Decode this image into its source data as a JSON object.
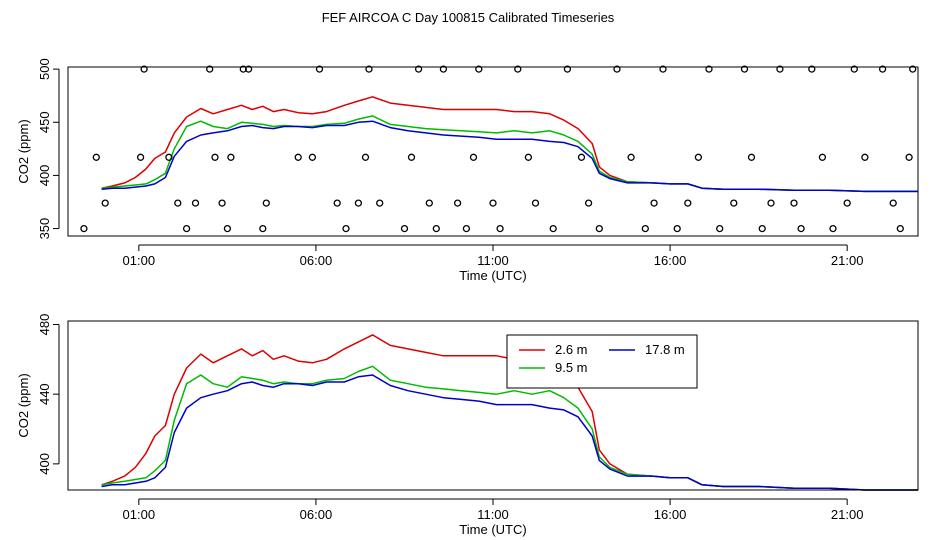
{
  "title": "FEF AIRCOA C  Day 100815  Calibrated Timeseries",
  "colors": {
    "s1": "#dd0000",
    "s2": "#00bb00",
    "s3": "#0000cc",
    "axis": "#000000"
  },
  "chart_data": [
    {
      "type": "line",
      "ylabel": "CO2 (ppm)",
      "xlabel": "Time (UTC)",
      "xlim": [
        -1.0,
        23.0
      ],
      "ylim": [
        343,
        502
      ],
      "xticks": [
        1,
        6,
        11,
        16,
        21
      ],
      "xtick_labels": [
        "01:00",
        "06:00",
        "11:00",
        "16:00",
        "21:00"
      ],
      "yticks": [
        350,
        400,
        450,
        500
      ],
      "ytick_labels": [
        "350",
        "400",
        "450",
        "500"
      ],
      "series": [
        {
          "name": "2.6 m",
          "color": "#dd0000",
          "x": [
            -0.05,
            0.25,
            0.6,
            0.9,
            1.2,
            1.45,
            1.75,
            2.0,
            2.35,
            2.75,
            3.1,
            3.5,
            3.9,
            4.2,
            4.5,
            4.8,
            5.1,
            5.5,
            5.9,
            6.3,
            6.8,
            7.2,
            7.6,
            8.1,
            8.6,
            9.1,
            9.6,
            10.1,
            10.6,
            11.1,
            11.6,
            12.1,
            12.6,
            13.0,
            13.4,
            13.8,
            14.0,
            14.3,
            14.8,
            15.5,
            16.0,
            16.5,
            16.9,
            17.5,
            18.5,
            19.5,
            20.5,
            21.5,
            22.5,
            23.0
          ],
          "values": [
            388,
            390,
            393,
            398,
            406,
            416,
            422,
            440,
            455,
            463,
            458,
            462,
            466,
            462,
            465,
            460,
            462,
            459,
            458,
            460,
            466,
            470,
            474,
            468,
            466,
            464,
            462,
            462,
            462,
            462,
            460,
            460,
            458,
            452,
            444,
            430,
            408,
            400,
            394,
            393,
            392,
            392,
            388,
            387,
            387,
            386,
            386,
            385,
            385,
            385
          ]
        },
        {
          "name": "9.5 m",
          "color": "#00bb00",
          "x": [
            -0.05,
            0.25,
            0.6,
            0.9,
            1.2,
            1.45,
            1.75,
            2.0,
            2.35,
            2.75,
            3.1,
            3.5,
            3.9,
            4.2,
            4.5,
            4.8,
            5.1,
            5.5,
            5.9,
            6.3,
            6.8,
            7.2,
            7.6,
            8.1,
            8.6,
            9.1,
            9.6,
            10.1,
            10.6,
            11.1,
            11.6,
            12.1,
            12.6,
            13.0,
            13.4,
            13.8,
            14.0,
            14.3,
            14.8,
            15.5,
            16.0,
            16.5,
            16.9,
            17.5,
            18.5,
            19.5,
            20.5,
            21.5,
            22.5,
            23.0
          ],
          "values": [
            388,
            389,
            390,
            391,
            392,
            396,
            402,
            425,
            446,
            451,
            446,
            444,
            450,
            449,
            448,
            446,
            447,
            446,
            446,
            448,
            449,
            453,
            456,
            448,
            446,
            444,
            443,
            442,
            441,
            440,
            442,
            440,
            442,
            438,
            432,
            420,
            404,
            398,
            394,
            393,
            392,
            392,
            388,
            387,
            387,
            386,
            386,
            385,
            385,
            385
          ]
        },
        {
          "name": "17.8 m",
          "color": "#0000cc",
          "x": [
            -0.05,
            0.25,
            0.6,
            0.9,
            1.2,
            1.45,
            1.75,
            2.0,
            2.35,
            2.75,
            3.1,
            3.5,
            3.9,
            4.2,
            4.5,
            4.8,
            5.1,
            5.5,
            5.9,
            6.3,
            6.8,
            7.2,
            7.6,
            8.1,
            8.6,
            9.1,
            9.6,
            10.1,
            10.6,
            11.1,
            11.6,
            12.1,
            12.6,
            13.0,
            13.4,
            13.8,
            14.0,
            14.3,
            14.8,
            15.5,
            16.0,
            16.5,
            16.9,
            17.5,
            18.5,
            19.5,
            20.5,
            21.5,
            22.5,
            23.0
          ],
          "values": [
            387,
            388,
            388,
            389,
            390,
            392,
            398,
            418,
            432,
            438,
            440,
            442,
            446,
            447,
            445,
            444,
            446,
            446,
            445,
            447,
            447,
            450,
            451,
            445,
            442,
            440,
            438,
            437,
            436,
            434,
            434,
            434,
            432,
            431,
            427,
            416,
            402,
            397,
            393,
            393,
            392,
            392,
            388,
            387,
            387,
            386,
            386,
            385,
            385,
            385
          ]
        },
        {
          "name": "markers",
          "color": "#000000",
          "type": "scatter",
          "x": [
            -0.55,
            -0.2,
            0.05,
            1.05,
            1.15,
            1.85,
            2.1,
            2.35,
            2.6,
            3.0,
            3.15,
            3.35,
            3.5,
            3.6,
            3.95,
            4.1,
            4.5,
            4.6,
            5.5,
            5.9,
            6.1,
            6.6,
            6.85,
            7.2,
            7.4,
            7.5,
            7.8,
            8.5,
            8.7,
            8.9,
            9.2,
            9.4,
            9.6,
            10.0,
            10.25,
            10.45,
            10.6,
            11.0,
            11.2,
            11.7,
            12.0,
            12.2,
            12.7,
            13.1,
            13.5,
            13.7,
            14.0,
            14.5,
            14.9,
            15.3,
            15.55,
            15.8,
            16.2,
            16.5,
            16.8,
            17.1,
            17.4,
            17.8,
            18.1,
            18.3,
            18.6,
            18.85,
            19.1,
            19.5,
            19.7,
            20.0,
            20.3,
            20.6,
            21.0,
            21.2,
            21.5,
            22.0,
            22.3,
            22.5,
            22.75,
            22.85
          ],
          "values": [
            350,
            417,
            374,
            417,
            500,
            417,
            374,
            350,
            374,
            500,
            417,
            374,
            350,
            417,
            500,
            500,
            350,
            374,
            417,
            417,
            500,
            374,
            350,
            374,
            417,
            500,
            374,
            350,
            417,
            500,
            374,
            350,
            500,
            374,
            350,
            417,
            500,
            374,
            350,
            500,
            417,
            374,
            350,
            500,
            417,
            374,
            350,
            500,
            417,
            350,
            374,
            500,
            350,
            374,
            417,
            500,
            350,
            374,
            500,
            417,
            350,
            374,
            500,
            374,
            350,
            500,
            417,
            350,
            374,
            500,
            417,
            500,
            374,
            350,
            417,
            500
          ]
        }
      ]
    },
    {
      "type": "line",
      "ylabel": "CO2 (ppm)",
      "xlabel": "Time (UTC)",
      "xlim": [
        -1.0,
        23.0
      ],
      "ylim": [
        385,
        482
      ],
      "xticks": [
        1,
        6,
        11,
        16,
        21
      ],
      "xtick_labels": [
        "01:00",
        "06:00",
        "11:00",
        "16:00",
        "21:00"
      ],
      "yticks": [
        400,
        440,
        480
      ],
      "ytick_labels": [
        "400",
        "440",
        "480"
      ],
      "legend": {
        "position": "upper-center-right",
        "entries": [
          "2.6 m",
          "9.5 m",
          "17.8 m"
        ]
      },
      "series": [
        {
          "name": "2.6 m",
          "color": "#dd0000",
          "x": [
            -0.05,
            0.25,
            0.6,
            0.9,
            1.2,
            1.45,
            1.75,
            2.0,
            2.35,
            2.75,
            3.1,
            3.5,
            3.9,
            4.2,
            4.5,
            4.8,
            5.1,
            5.5,
            5.9,
            6.3,
            6.8,
            7.2,
            7.6,
            8.1,
            8.6,
            9.1,
            9.6,
            10.1,
            10.6,
            11.1,
            11.6,
            12.1,
            12.6,
            13.0,
            13.4,
            13.8,
            14.0,
            14.3,
            14.8,
            15.5,
            16.0,
            16.5,
            16.9,
            17.5,
            18.5,
            19.5,
            20.5,
            21.5,
            22.5,
            23.0
          ],
          "values": [
            388,
            390,
            393,
            398,
            406,
            416,
            422,
            440,
            455,
            463,
            458,
            462,
            466,
            462,
            465,
            460,
            462,
            459,
            458,
            460,
            466,
            470,
            474,
            468,
            466,
            464,
            462,
            462,
            462,
            462,
            460,
            460,
            458,
            452,
            444,
            430,
            408,
            400,
            394,
            393,
            392,
            392,
            388,
            387,
            387,
            386,
            386,
            385,
            385,
            385
          ]
        },
        {
          "name": "9.5 m",
          "color": "#00bb00",
          "x": [
            -0.05,
            0.25,
            0.6,
            0.9,
            1.2,
            1.45,
            1.75,
            2.0,
            2.35,
            2.75,
            3.1,
            3.5,
            3.9,
            4.2,
            4.5,
            4.8,
            5.1,
            5.5,
            5.9,
            6.3,
            6.8,
            7.2,
            7.6,
            8.1,
            8.6,
            9.1,
            9.6,
            10.1,
            10.6,
            11.1,
            11.6,
            12.1,
            12.6,
            13.0,
            13.4,
            13.8,
            14.0,
            14.3,
            14.8,
            15.5,
            16.0,
            16.5,
            16.9,
            17.5,
            18.5,
            19.5,
            20.5,
            21.5,
            22.5,
            23.0
          ],
          "values": [
            388,
            389,
            390,
            391,
            392,
            396,
            402,
            425,
            446,
            451,
            446,
            444,
            450,
            449,
            448,
            446,
            447,
            446,
            446,
            448,
            449,
            453,
            456,
            448,
            446,
            444,
            443,
            442,
            441,
            440,
            442,
            440,
            442,
            438,
            432,
            420,
            404,
            398,
            394,
            393,
            392,
            392,
            388,
            387,
            387,
            386,
            386,
            385,
            385,
            385
          ]
        },
        {
          "name": "17.8 m",
          "color": "#0000cc",
          "x": [
            -0.05,
            0.25,
            0.6,
            0.9,
            1.2,
            1.45,
            1.75,
            2.0,
            2.35,
            2.75,
            3.1,
            3.5,
            3.9,
            4.2,
            4.5,
            4.8,
            5.1,
            5.5,
            5.9,
            6.3,
            6.8,
            7.2,
            7.6,
            8.1,
            8.6,
            9.1,
            9.6,
            10.1,
            10.6,
            11.1,
            11.6,
            12.1,
            12.6,
            13.0,
            13.4,
            13.8,
            14.0,
            14.3,
            14.8,
            15.5,
            16.0,
            16.5,
            16.9,
            17.5,
            18.5,
            19.5,
            20.5,
            21.5,
            22.5,
            23.0
          ],
          "values": [
            387,
            388,
            388,
            389,
            390,
            392,
            398,
            418,
            432,
            438,
            440,
            442,
            446,
            447,
            445,
            444,
            446,
            446,
            445,
            447,
            447,
            450,
            451,
            445,
            442,
            440,
            438,
            437,
            436,
            434,
            434,
            434,
            432,
            431,
            427,
            416,
            402,
            397,
            393,
            393,
            392,
            392,
            388,
            387,
            387,
            386,
            386,
            385,
            385,
            385
          ]
        }
      ]
    }
  ]
}
